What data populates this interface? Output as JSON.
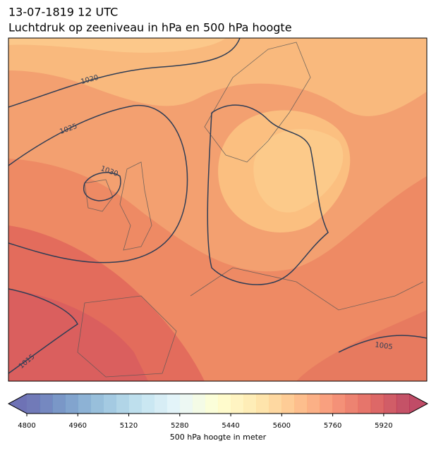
{
  "chart_data": {
    "type": "contour_map",
    "title": "13-07-1819 12 UTC",
    "subtitle": "Luchtdruk op zeeniveau in hPa en 500 hPa hoogte",
    "isobar_labels": [
      1020,
      1025,
      1030,
      1015,
      1005
    ],
    "colorbar": {
      "label": "500 hPa hoogte in meter",
      "lim": [
        4800,
        6000
      ],
      "ticks": [
        4800,
        4960,
        5120,
        5280,
        5440,
        5600,
        5760,
        5920
      ],
      "contour_interval": 40,
      "extend": "both",
      "colormap": [
        "#313695",
        "#4575b4",
        "#74add1",
        "#abd9e9",
        "#e0f3f8",
        "#ffffbf",
        "#fee090",
        "#fdae61",
        "#f46d43",
        "#d73027",
        "#a50026"
      ],
      "alpha": 0.7
    }
  }
}
